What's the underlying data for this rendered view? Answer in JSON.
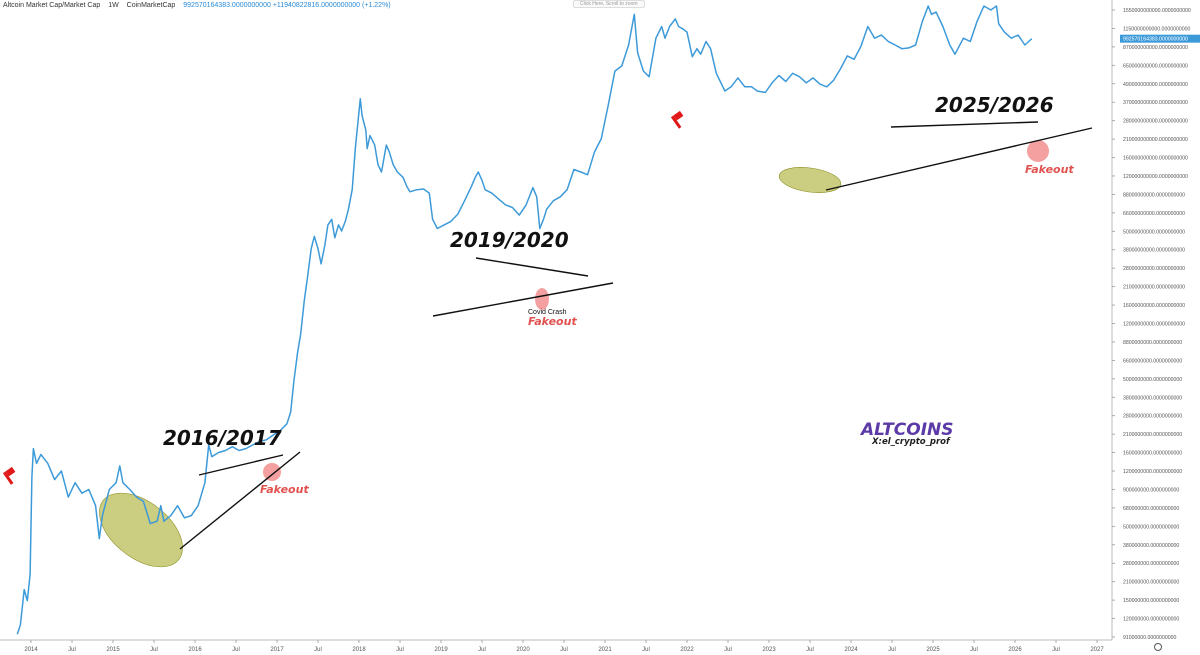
{
  "header": {
    "title": "Altcoin Market Cap/Market Cap",
    "interval": "1W",
    "source": "CoinMarketCap",
    "price": "992570164383.0000000000",
    "change": "+11940822816.0000000000 (+1.22%)"
  },
  "top_pill": "Click Here, Scroll to zoom",
  "price_tag": "992570164383.0000000000",
  "settings_icon": "gear-icon",
  "chart_data": {
    "type": "line",
    "title": "Altcoin Market Cap",
    "xlabel": "",
    "ylabel": "",
    "y_scale": "log",
    "line_color": "#3d9ad9",
    "x_ticks": [
      "2014",
      "Jul",
      "2015",
      "Jul",
      "2016",
      "Jul",
      "2017",
      "Jul",
      "2018",
      "Jul",
      "2019",
      "Jul",
      "2020",
      "Jul",
      "2021",
      "Jul",
      "2022",
      "Jul",
      "2023",
      "Jul",
      "2024",
      "Jul",
      "2025",
      "Jul",
      "2026",
      "Jul",
      "2027"
    ],
    "y_ticks": [
      "1550000000000.0000000000",
      "1150000000000.0000000000",
      "870000000000.0000000000",
      "650000000000.0000000000",
      "490000000000.0000000000",
      "370000000000.0000000000",
      "280000000000.0000000000",
      "210000000000.0000000000",
      "160000000000.0000000000",
      "120000000000.0000000000",
      "88000000000.0000000000",
      "66000000000.0000000000",
      "50000000000.0000000000",
      "38000000000.0000000000",
      "28000000000.0000000000",
      "21000000000.0000000000",
      "16000000000.0000000000",
      "12000000000.0000000000",
      "8800000000.0000000000",
      "6600000000.0000000000",
      "5000000000.0000000000",
      "3800000000.0000000000",
      "2800000000.0000000000",
      "2100000000.0000000000",
      "1600000000.0000000000",
      "1200000000.0000000000",
      "900000000.0000000000",
      "680000000.0000000000",
      "500000000.0000000000",
      "380000000.0000000000",
      "280000000.0000000000",
      "210000000.0000000000",
      "150000000.0000000000",
      "120000000.0000000000",
      "91000000.0000000000"
    ],
    "series": [
      {
        "values": [
          [
            "2013-11-01",
            95000000
          ],
          [
            "2013-11-15",
            110000000
          ],
          [
            "2013-12-01",
            190000000
          ],
          [
            "2013-12-15",
            160000000
          ],
          [
            "2013-12-28",
            240000000
          ],
          [
            "2014-01-05",
            1100000000
          ],
          [
            "2014-01-12",
            1700000000
          ],
          [
            "2014-01-26",
            1350000000
          ],
          [
            "2014-02-15",
            1550000000
          ],
          [
            "2014-03-15",
            1350000000
          ],
          [
            "2014-04-15",
            1050000000
          ],
          [
            "2014-05-15",
            1200000000
          ],
          [
            "2014-06-15",
            800000000
          ],
          [
            "2014-07-15",
            1000000000
          ],
          [
            "2014-08-15",
            850000000
          ],
          [
            "2014-09-15",
            900000000
          ],
          [
            "2014-10-15",
            700000000
          ],
          [
            "2014-11-01",
            420000000
          ],
          [
            "2014-11-15",
            600000000
          ],
          [
            "2014-12-15",
            900000000
          ],
          [
            "2015-01-15",
            1000000000
          ],
          [
            "2015-02-01",
            1300000000
          ],
          [
            "2015-02-15",
            1000000000
          ],
          [
            "2015-03-15",
            900000000
          ],
          [
            "2015-04-15",
            800000000
          ],
          [
            "2015-05-15",
            750000000
          ],
          [
            "2015-06-15",
            530000000
          ],
          [
            "2015-07-15",
            550000000
          ],
          [
            "2015-08-01",
            700000000
          ],
          [
            "2015-08-15",
            550000000
          ],
          [
            "2015-09-15",
            600000000
          ],
          [
            "2015-10-15",
            700000000
          ],
          [
            "2015-11-15",
            580000000
          ],
          [
            "2015-12-15",
            600000000
          ],
          [
            "2016-01-15",
            700000000
          ],
          [
            "2016-02-15",
            1000000000
          ],
          [
            "2016-03-01",
            1800000000
          ],
          [
            "2016-03-15",
            1500000000
          ],
          [
            "2016-04-15",
            1600000000
          ],
          [
            "2016-05-15",
            1650000000
          ],
          [
            "2016-06-15",
            1750000000
          ],
          [
            "2016-07-15",
            1650000000
          ],
          [
            "2016-08-15",
            1700000000
          ],
          [
            "2016-09-15",
            1800000000
          ],
          [
            "2016-10-15",
            1900000000
          ],
          [
            "2016-11-15",
            1950000000
          ],
          [
            "2016-12-15",
            2100000000
          ],
          [
            "2017-01-15",
            2250000000
          ],
          [
            "2017-02-15",
            2500000000
          ],
          [
            "2017-03-01",
            3000000000
          ],
          [
            "2017-03-15",
            4800000000
          ],
          [
            "2017-04-01",
            7500000000
          ],
          [
            "2017-04-15",
            10000000000
          ],
          [
            "2017-05-01",
            17000000000
          ],
          [
            "2017-05-15",
            24000000000
          ],
          [
            "2017-06-01",
            38000000000
          ],
          [
            "2017-06-15",
            46000000000
          ],
          [
            "2017-07-01",
            38000000000
          ],
          [
            "2017-07-15",
            30000000000
          ],
          [
            "2017-08-01",
            40000000000
          ],
          [
            "2017-08-15",
            55000000000
          ],
          [
            "2017-09-01",
            60000000000
          ],
          [
            "2017-09-15",
            45000000000
          ],
          [
            "2017-10-01",
            55000000000
          ],
          [
            "2017-10-15",
            50000000000
          ],
          [
            "2017-11-01",
            58000000000
          ],
          [
            "2017-11-15",
            70000000000
          ],
          [
            "2017-12-01",
            95000000000
          ],
          [
            "2017-12-15",
            180000000000
          ],
          [
            "2018-01-01",
            320000000000
          ],
          [
            "2018-01-07",
            390000000000
          ],
          [
            "2018-01-15",
            300000000000
          ],
          [
            "2018-02-01",
            240000000000
          ],
          [
            "2018-02-07",
            180000000000
          ],
          [
            "2018-02-20",
            220000000000
          ],
          [
            "2018-03-10",
            190000000000
          ],
          [
            "2018-03-25",
            140000000000
          ],
          [
            "2018-04-10",
            125000000000
          ],
          [
            "2018-05-01",
            190000000000
          ],
          [
            "2018-05-15",
            170000000000
          ],
          [
            "2018-06-01",
            140000000000
          ],
          [
            "2018-06-20",
            125000000000
          ],
          [
            "2018-07-15",
            115000000000
          ],
          [
            "2018-08-01",
            100000000000
          ],
          [
            "2018-08-15",
            92000000000
          ],
          [
            "2018-09-15",
            95000000000
          ],
          [
            "2018-10-15",
            96000000000
          ],
          [
            "2018-11-10",
            90000000000
          ],
          [
            "2018-11-25",
            60000000000
          ],
          [
            "2018-12-15",
            52000000000
          ],
          [
            "2019-01-15",
            55000000000
          ],
          [
            "2019-02-15",
            58000000000
          ],
          [
            "2019-03-15",
            65000000000
          ],
          [
            "2019-04-15",
            80000000000
          ],
          [
            "2019-05-15",
            100000000000
          ],
          [
            "2019-06-01",
            115000000000
          ],
          [
            "2019-06-15",
            125000000000
          ],
          [
            "2019-07-01",
            110000000000
          ],
          [
            "2019-07-15",
            95000000000
          ],
          [
            "2019-08-15",
            90000000000
          ],
          [
            "2019-09-15",
            82000000000
          ],
          [
            "2019-10-15",
            75000000000
          ],
          [
            "2019-11-15",
            72000000000
          ],
          [
            "2019-12-15",
            64000000000
          ],
          [
            "2020-01-15",
            75000000000
          ],
          [
            "2020-02-15",
            98000000000
          ],
          [
            "2020-03-01",
            85000000000
          ],
          [
            "2020-03-15",
            52000000000
          ],
          [
            "2020-04-01",
            60000000000
          ],
          [
            "2020-04-15",
            70000000000
          ],
          [
            "2020-05-15",
            80000000000
          ],
          [
            "2020-06-15",
            85000000000
          ],
          [
            "2020-07-15",
            95000000000
          ],
          [
            "2020-08-15",
            130000000000
          ],
          [
            "2020-09-15",
            125000000000
          ],
          [
            "2020-10-15",
            120000000000
          ],
          [
            "2020-11-15",
            170000000000
          ],
          [
            "2020-12-15",
            210000000000
          ],
          [
            "2021-01-15",
            350000000000
          ],
          [
            "2021-02-15",
            600000000000
          ],
          [
            "2021-03-15",
            650000000000
          ],
          [
            "2021-04-15",
            900000000000
          ],
          [
            "2021-05-10",
            1450000000000
          ],
          [
            "2021-05-25",
            800000000000
          ],
          [
            "2021-06-20",
            600000000000
          ],
          [
            "2021-07-15",
            550000000000
          ],
          [
            "2021-08-15",
            1000000000000
          ],
          [
            "2021-09-10",
            1200000000000
          ],
          [
            "2021-09-25",
            1000000000000
          ],
          [
            "2021-10-15",
            1200000000000
          ],
          [
            "2021-11-10",
            1350000000000
          ],
          [
            "2021-11-25",
            1200000000000
          ],
          [
            "2021-12-15",
            1150000000000
          ],
          [
            "2022-01-01",
            1100000000000
          ],
          [
            "2022-01-25",
            750000000000
          ],
          [
            "2022-02-15",
            850000000000
          ],
          [
            "2022-03-01",
            780000000000
          ],
          [
            "2022-03-25",
            950000000000
          ],
          [
            "2022-04-15",
            850000000000
          ],
          [
            "2022-05-10",
            580000000000
          ],
          [
            "2022-06-18",
            440000000000
          ],
          [
            "2022-07-15",
            470000000000
          ],
          [
            "2022-08-15",
            540000000000
          ],
          [
            "2022-09-15",
            470000000000
          ],
          [
            "2022-10-15",
            470000000000
          ],
          [
            "2022-11-10",
            440000000000
          ],
          [
            "2022-12-15",
            430000000000
          ],
          [
            "2023-01-15",
            500000000000
          ],
          [
            "2023-02-15",
            560000000000
          ],
          [
            "2023-03-15",
            510000000000
          ],
          [
            "2023-04-15",
            580000000000
          ],
          [
            "2023-05-15",
            550000000000
          ],
          [
            "2023-06-15",
            500000000000
          ],
          [
            "2023-07-15",
            540000000000
          ],
          [
            "2023-08-15",
            490000000000
          ],
          [
            "2023-09-15",
            470000000000
          ],
          [
            "2023-10-15",
            520000000000
          ],
          [
            "2023-11-15",
            620000000000
          ],
          [
            "2023-12-15",
            760000000000
          ],
          [
            "2024-01-15",
            720000000000
          ],
          [
            "2024-02-15",
            880000000000
          ],
          [
            "2024-03-15",
            1200000000000
          ],
          [
            "2024-04-15",
            1000000000000
          ],
          [
            "2024-05-15",
            1050000000000
          ],
          [
            "2024-06-15",
            950000000000
          ],
          [
            "2024-07-15",
            900000000000
          ],
          [
            "2024-08-15",
            850000000000
          ],
          [
            "2024-09-15",
            860000000000
          ],
          [
            "2024-10-15",
            900000000000
          ],
          [
            "2024-11-15",
            1300000000000
          ],
          [
            "2024-12-10",
            1650000000000
          ],
          [
            "2024-12-25",
            1450000000000
          ],
          [
            "2025-01-15",
            1500000000000
          ],
          [
            "2025-02-15",
            1200000000000
          ],
          [
            "2025-03-15",
            900000000000
          ],
          [
            "2025-04-08",
            780000000000
          ],
          [
            "2025-05-15",
            1000000000000
          ],
          [
            "2025-06-15",
            950000000000
          ],
          [
            "2025-07-15",
            1300000000000
          ],
          [
            "2025-08-15",
            1650000000000
          ],
          [
            "2025-09-15",
            1550000000000
          ],
          [
            "2025-10-10",
            1650000000000
          ],
          [
            "2025-10-20",
            1250000000000
          ],
          [
            "2025-11-15",
            1100000000000
          ],
          [
            "2025-12-15",
            1000000000000
          ],
          [
            "2026-01-15",
            1050000000000
          ],
          [
            "2026-02-15",
            900000000000
          ],
          [
            "2026-03-01",
            950000000000
          ],
          [
            "2026-03-15",
            992570164383
          ]
        ]
      }
    ],
    "annotations": {
      "periods": [
        "2016/2017",
        "2019/2020",
        "2025/2026"
      ],
      "fakeout": "Fakeout",
      "covid": "Covid Crash",
      "brand": "ALTCOINS",
      "handle": "X:el_crypto_prof"
    }
  }
}
